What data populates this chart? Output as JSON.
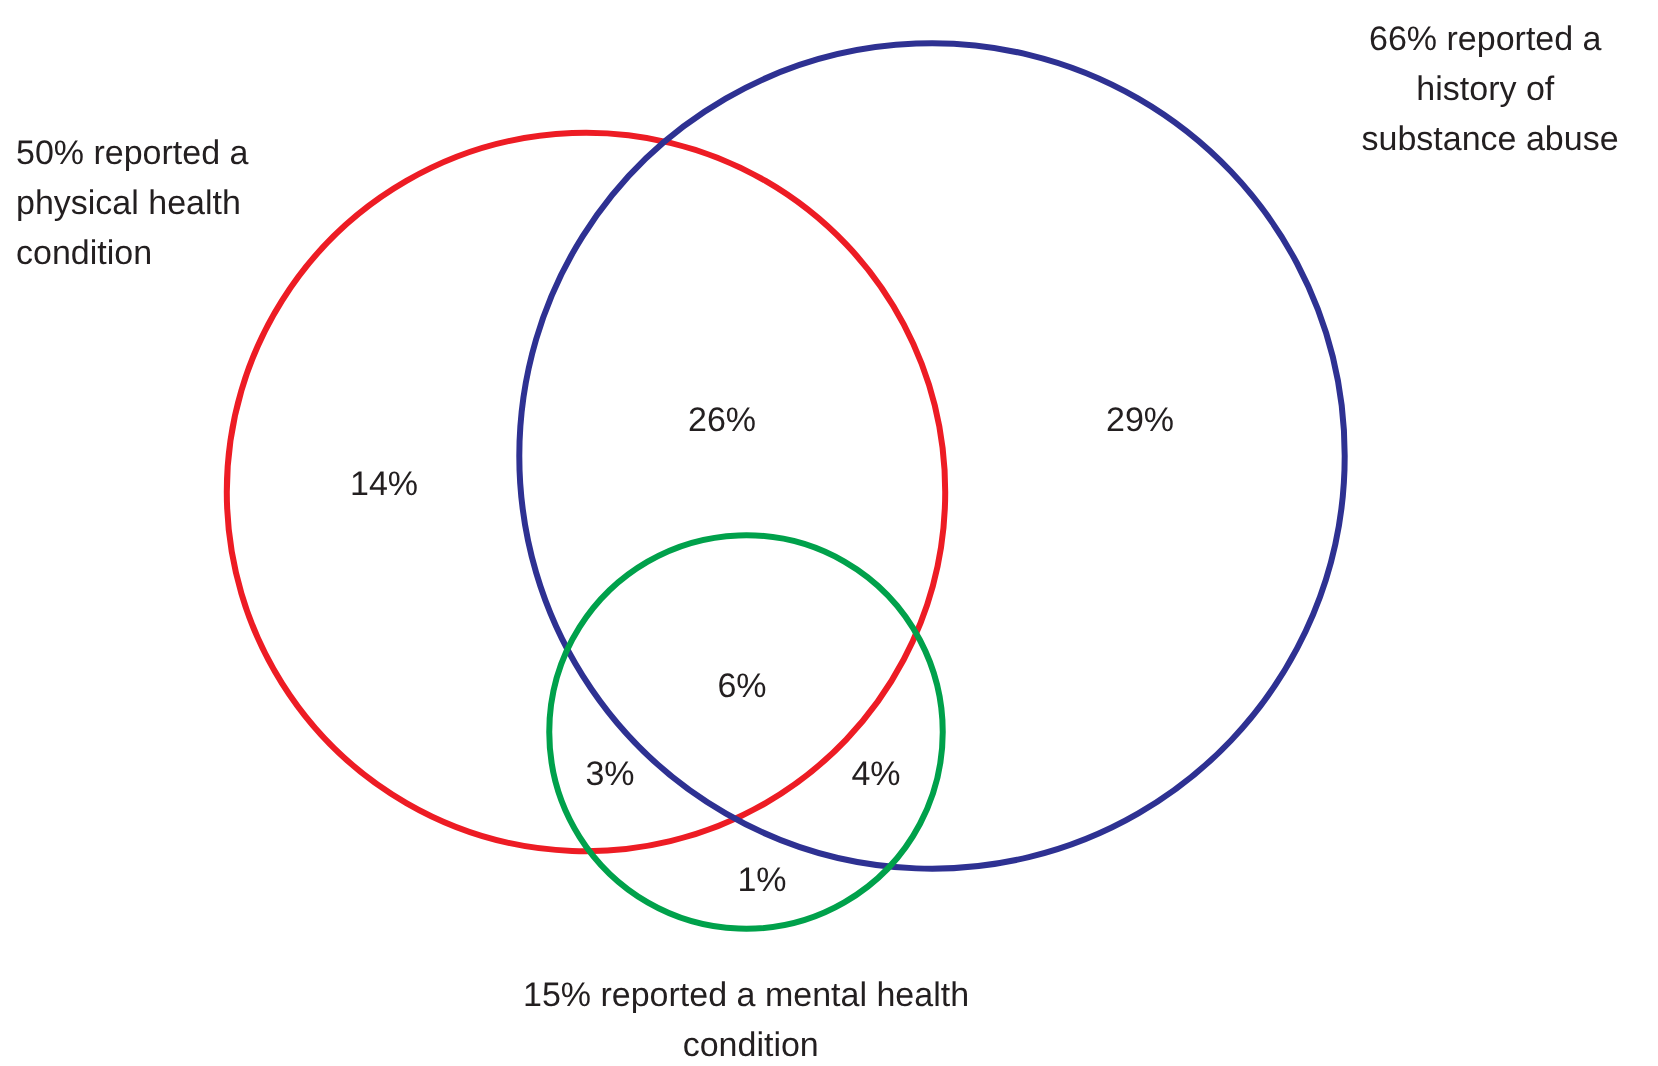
{
  "chart_data": {
    "type": "other",
    "categories": [
      "reported a physical health condition",
      "reported a history of substance abuse",
      "reported a mental health condition"
    ],
    "values": [
      50,
      66,
      15
    ],
    "value_labels": [
      "50%",
      "66%",
      "15%"
    ],
    "colors": [
      "#ed1c24",
      "#2e3192",
      "#00a14b"
    ],
    "annotations": [
      "26%",
      "29%",
      "14%",
      "6%",
      "3%",
      "4%",
      "1%"
    ]
  }
}
